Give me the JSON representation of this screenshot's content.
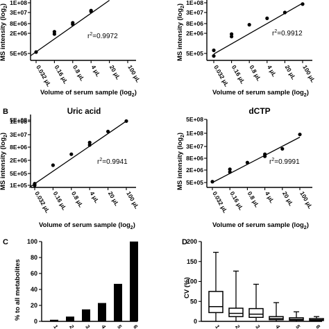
{
  "chart_data": [
    {
      "type": "scatter",
      "panel": "A-left",
      "title": "",
      "xlabel": "Volume of serum sample (log",
      "xlabel_sub": "2",
      "xlabel_end": ")",
      "ylabel": "MS intensity (log",
      "ylabel_sub": "2",
      "ylabel_end": ")",
      "y_ticks": [
        "5E+05",
        "2E+06",
        "8E+06",
        "3E+07",
        "1E+08"
      ],
      "x_ticks": [
        "0.032 μL",
        "0.16 μL",
        "0.8 μL",
        "4 μL",
        "20 μL",
        "100 μL"
      ],
      "r2_prefix": "r",
      "r2_sup": "2",
      "r2_value": "=0.9972",
      "x": [
        0.032,
        0.16,
        0.16,
        0.8,
        0.8,
        4,
        4
      ],
      "y": [
        550000,
        1900000,
        2500000,
        7200000,
        8800000,
        34000000,
        38000000
      ],
      "fit": [
        [
          0.02,
          430000
        ],
        [
          20,
          135000000
        ]
      ]
    },
    {
      "type": "scatter",
      "panel": "A-right",
      "title": "",
      "xlabel": "Volume of serum sample (log",
      "xlabel_sub": "2",
      "xlabel_end": ")",
      "ylabel": "MS intensity (log",
      "ylabel_sub": "2",
      "ylabel_end": ")",
      "y_ticks": [
        "5E+05",
        "2E+06",
        "8E+06",
        "3E+07",
        "1E+08"
      ],
      "x_ticks": [
        "0.032 μL",
        "0.16 μL",
        "0.8 μL",
        "4 μL",
        "20 μL",
        "100 μL"
      ],
      "r2_prefix": "r",
      "r2_sup": "2",
      "r2_value": "=0.9912",
      "x": [
        0.032,
        0.032,
        0.16,
        0.16,
        0.8,
        4,
        20,
        100
      ],
      "y": [
        420000,
        620000,
        1600000,
        1900000,
        6800000,
        15000000,
        30000000,
        85000000
      ],
      "fit": [
        [
          0.032,
          480000
        ],
        [
          100,
          95000000
        ]
      ]
    },
    {
      "type": "scatter",
      "panel": "B-left",
      "title": "Uric acid",
      "xlabel": "Volume of serum sample (log",
      "xlabel_sub": "2",
      "xlabel_end": ")",
      "ylabel": "MS intensity (log",
      "ylabel_sub": "2",
      "ylabel_end": ")",
      "y_ticks": [
        "1E+05",
        "5E+05",
        "2E+06",
        "8E+06",
        "3E+07",
        "1E+08",
        "5E+08"
      ],
      "x_ticks": [
        "0.032 μL",
        "0.16 μL",
        "0.8 μL",
        "4 μL",
        "20 μL",
        "100 μL"
      ],
      "r2_prefix": "r",
      "r2_sup": "2",
      "r2_value": "=0.9941",
      "x": [
        0.032,
        0.032,
        0.16,
        0.8,
        4,
        4,
        20,
        100
      ],
      "y": [
        100000,
        125000,
        1200000,
        3800000,
        10000000,
        13000000,
        40000000,
        160000000
      ],
      "fit": [
        [
          0.02,
          75000
        ],
        [
          100,
          160000000
        ]
      ]
    },
    {
      "type": "scatter",
      "panel": "B-right",
      "title": "dCTP",
      "xlabel": "Volume of serum sample (log",
      "xlabel_sub": "2",
      "xlabel_end": ")",
      "ylabel": "MS intensity (log",
      "ylabel_sub": "2",
      "ylabel_end": ")",
      "y_ticks": [
        "5E+05",
        "2E+06",
        "8E+06",
        "3E+07",
        "1E+08",
        "5E+08"
      ],
      "x_ticks": [
        "0.032 μL",
        "0.16 μL",
        "0.8 μL",
        "4 μL",
        "20 μL",
        "100 μL"
      ],
      "r2_prefix": "r",
      "r2_sup": "2",
      "r2_value": "=0.9991",
      "x": [
        0.032,
        0.16,
        0.16,
        0.8,
        4,
        4,
        20,
        100
      ],
      "y": [
        550000,
        1600000,
        2200000,
        4800000,
        10000000,
        12500000,
        23000000,
        90000000
      ],
      "fit": [
        [
          0.032,
          500000
        ],
        [
          100,
          70000000
        ]
      ]
    },
    {
      "type": "bar",
      "panel": "C",
      "ylabel": "% to all metabolites",
      "ylim": [
        0,
        100
      ],
      "y_ticks": [
        "0",
        "20",
        "40",
        "60",
        "80",
        "100"
      ],
      "categories": [
        "1",
        "2",
        "3",
        "4",
        "5",
        "6"
      ],
      "values": [
        2,
        6,
        15,
        23,
        47,
        100
      ]
    },
    {
      "type": "box",
      "panel": "D",
      "ylabel": "CV (%)",
      "ylim": [
        0,
        200
      ],
      "y_ticks": [
        "0",
        "50",
        "100",
        "150",
        "200"
      ],
      "categories": [
        "1",
        "2",
        "3",
        "4",
        "5",
        "6"
      ],
      "boxes": [
        {
          "min": 0,
          "q1": 22,
          "median": 37,
          "q3": 75,
          "max": 173
        },
        {
          "min": 0,
          "q1": 12,
          "median": 20,
          "q3": 33,
          "max": 126
        },
        {
          "min": 0,
          "q1": 10,
          "median": 18,
          "q3": 32,
          "max": 93
        },
        {
          "min": 0,
          "q1": 4,
          "median": 7,
          "q3": 12,
          "max": 47
        },
        {
          "min": 0,
          "q1": 3,
          "median": 5,
          "q3": 9,
          "max": 24
        },
        {
          "min": 0,
          "q1": 2,
          "median": 4,
          "q3": 7,
          "max": 12
        }
      ]
    }
  ],
  "panels": {
    "b_letter": "B",
    "c_letter": "C",
    "d_letter": "D"
  }
}
